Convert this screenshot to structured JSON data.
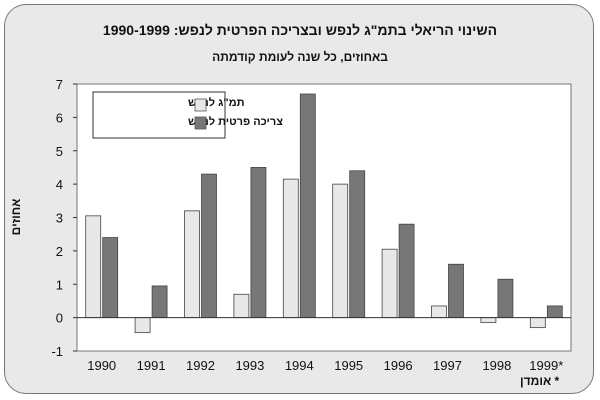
{
  "chart_data": {
    "type": "bar",
    "title": "השינוי הריאלי בתמ\"ג לנפש ובצריכה הפרטית לנפש: 1990-1999",
    "subtitle": "באחוזים, כל שנה לעומת קודמתה",
    "ylabel": "אחוזים",
    "footnote": "* אומדן",
    "categories": [
      "1990",
      "1991",
      "1992",
      "1993",
      "1994",
      "1995",
      "1996",
      "1997",
      "1998",
      "1999*"
    ],
    "ylim": [
      -1,
      7
    ],
    "yticks": [
      -1,
      0,
      1,
      2,
      3,
      4,
      5,
      6,
      7
    ],
    "legend_position": "top-left",
    "series": [
      {
        "name": "תמ\"ג לנפש",
        "color": "#e8e8e8",
        "values": [
          3.05,
          -0.45,
          3.2,
          0.7,
          4.15,
          4.0,
          2.05,
          0.35,
          -0.15,
          -0.3
        ]
      },
      {
        "name": "צריכה פרטית לנפש",
        "color": "#777777",
        "values": [
          2.4,
          0.95,
          4.3,
          4.5,
          6.7,
          4.4,
          2.8,
          1.6,
          1.15,
          0.35
        ]
      }
    ]
  }
}
